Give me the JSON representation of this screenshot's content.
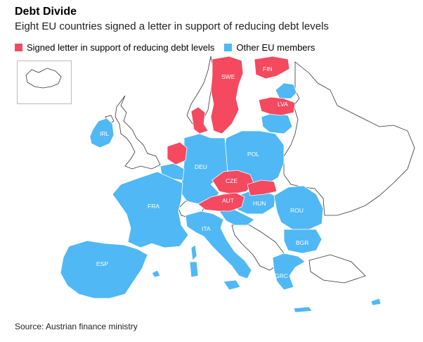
{
  "header": {
    "title": "Debt Divide",
    "subtitle": "Eight EU countries signed a letter in support of reducing debt levels"
  },
  "legend": {
    "signed_label": "Signed letter in support of reducing debt levels",
    "other_label": "Other EU members",
    "signed_color": "#f4495f",
    "other_color": "#4fb8f5"
  },
  "countries": {
    "swe": "SWE",
    "fin": "FIN",
    "lva": "LVA",
    "irl": "IRL",
    "deu": "DEU",
    "pol": "POL",
    "cze": "CZE",
    "aut": "AUT",
    "hun": "HUN",
    "rou": "ROU",
    "fra": "FRA",
    "ita": "ITA",
    "bgr": "BGR",
    "esp": "ESP",
    "grc": "GRC"
  },
  "source": "Source: Austrian finance ministry"
}
